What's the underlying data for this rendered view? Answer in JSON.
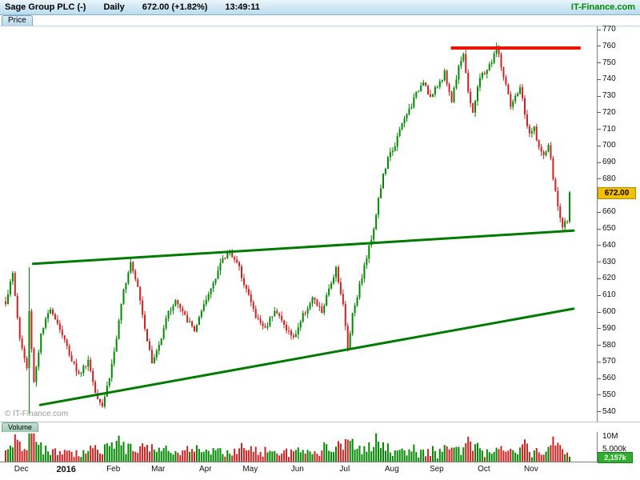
{
  "header": {
    "symbol": "Sage Group PLC (-)",
    "timeframe": "Daily",
    "quote": "672.00 (+1.82%)",
    "time": "13:49:11",
    "brand": "IT-Finance.com"
  },
  "tabs": {
    "price": "Price",
    "volume": "Volume"
  },
  "watermark": "© IT-Finance.com",
  "axis": {
    "price_ticks": [
      770,
      760,
      750,
      740,
      730,
      720,
      710,
      700,
      690,
      680,
      670,
      660,
      650,
      640,
      630,
      620,
      610,
      600,
      590,
      580,
      570,
      560,
      550,
      540
    ],
    "last_price_label": "672.00",
    "volume_ticks": [
      {
        "label": "10M",
        "value_m": 10
      },
      {
        "label": "5,000k",
        "value_m": 5
      }
    ],
    "volume_badge": "2,157k"
  },
  "months": [
    {
      "label": "Dec",
      "day": 7
    },
    {
      "label": "2016",
      "day": 26,
      "bold": true
    },
    {
      "label": "Feb",
      "day": 46
    },
    {
      "label": "Mar",
      "day": 65
    },
    {
      "label": "Apr",
      "day": 85
    },
    {
      "label": "May",
      "day": 104
    },
    {
      "label": "Jun",
      "day": 124
    },
    {
      "label": "Jul",
      "day": 144
    },
    {
      "label": "Aug",
      "day": 164
    },
    {
      "label": "Sep",
      "day": 183
    },
    {
      "label": "Oct",
      "day": 203
    },
    {
      "label": "Nov",
      "day": 223
    }
  ],
  "colors": {
    "up": "#008800",
    "down": "#cc2222",
    "trend": "#007a00",
    "resistance": "#ee1100",
    "price_badge_bg": "#f3c000",
    "volume_badge_bg": "#2fae2f",
    "brand_green": "#008800"
  },
  "chart_data": {
    "type": "candlestick",
    "title": "Sage Group PLC (-) Daily",
    "last_price": 672.0,
    "change_pct": "+1.82%",
    "quote_time": "13:49:11",
    "ylim": [
      534,
      772
    ],
    "days": 240,
    "seed": 1337,
    "noise": 1.8,
    "wick": 2.8,
    "price_anchors": [
      [
        0,
        606
      ],
      [
        3,
        623
      ],
      [
        6,
        584
      ],
      [
        9,
        566
      ],
      [
        10,
        600
      ],
      [
        12,
        558
      ],
      [
        15,
        586
      ],
      [
        19,
        603
      ],
      [
        23,
        590
      ],
      [
        27,
        575
      ],
      [
        31,
        562
      ],
      [
        35,
        571
      ],
      [
        38,
        552
      ],
      [
        41,
        544
      ],
      [
        44,
        561
      ],
      [
        47,
        584
      ],
      [
        50,
        613
      ],
      [
        53,
        631
      ],
      [
        56,
        616
      ],
      [
        59,
        591
      ],
      [
        62,
        569
      ],
      [
        65,
        580
      ],
      [
        68,
        597
      ],
      [
        72,
        607
      ],
      [
        76,
        597
      ],
      [
        80,
        589
      ],
      [
        84,
        603
      ],
      [
        88,
        618
      ],
      [
        91,
        629
      ],
      [
        95,
        637
      ],
      [
        99,
        626
      ],
      [
        103,
        610
      ],
      [
        106,
        597
      ],
      [
        110,
        590
      ],
      [
        114,
        602
      ],
      [
        118,
        592
      ],
      [
        122,
        584
      ],
      [
        126,
        598
      ],
      [
        130,
        608
      ],
      [
        134,
        600
      ],
      [
        137,
        613
      ],
      [
        140,
        627
      ],
      [
        143,
        604
      ],
      [
        145,
        578
      ],
      [
        147,
        599
      ],
      [
        150,
        616
      ],
      [
        153,
        633
      ],
      [
        156,
        651
      ],
      [
        158,
        668
      ],
      [
        160,
        682
      ],
      [
        162,
        692
      ],
      [
        165,
        701
      ],
      [
        168,
        713
      ],
      [
        171,
        722
      ],
      [
        174,
        731
      ],
      [
        177,
        740
      ],
      [
        180,
        729
      ],
      [
        183,
        736
      ],
      [
        186,
        744
      ],
      [
        189,
        727
      ],
      [
        192,
        749
      ],
      [
        194,
        756
      ],
      [
        196,
        731
      ],
      [
        198,
        721
      ],
      [
        201,
        741
      ],
      [
        204,
        746
      ],
      [
        206,
        751
      ],
      [
        208,
        760
      ],
      [
        210,
        748
      ],
      [
        212,
        736
      ],
      [
        214,
        723
      ],
      [
        216,
        729
      ],
      [
        218,
        736
      ],
      [
        220,
        719
      ],
      [
        222,
        706
      ],
      [
        224,
        711
      ],
      [
        226,
        699
      ],
      [
        228,
        693
      ],
      [
        230,
        701
      ],
      [
        232,
        681
      ],
      [
        234,
        663
      ],
      [
        236,
        651
      ],
      [
        238,
        656
      ],
      [
        239,
        672
      ]
    ],
    "long_range_day": {
      "day": 10,
      "high": 627,
      "low": 539
    },
    "trend_lines": [
      {
        "name": "rising-support-upper",
        "from": {
          "day": 12,
          "price": 629
        },
        "to": {
          "day": 241,
          "price": 649
        }
      },
      {
        "name": "rising-support-lower",
        "from": {
          "day": 15,
          "price": 544
        },
        "to": {
          "day": 241,
          "price": 602
        }
      }
    ],
    "resistance_line": {
      "price": 759,
      "from_day": 189,
      "to_day": 244
    },
    "volume": {
      "base_m": 1.2,
      "rand_m": 2.8,
      "move_factor": 0.5,
      "spike_prob": 0.05,
      "spike_m": 4,
      "max_m": 11,
      "axis_max_m": 11.5,
      "last_m": 2.157
    }
  }
}
